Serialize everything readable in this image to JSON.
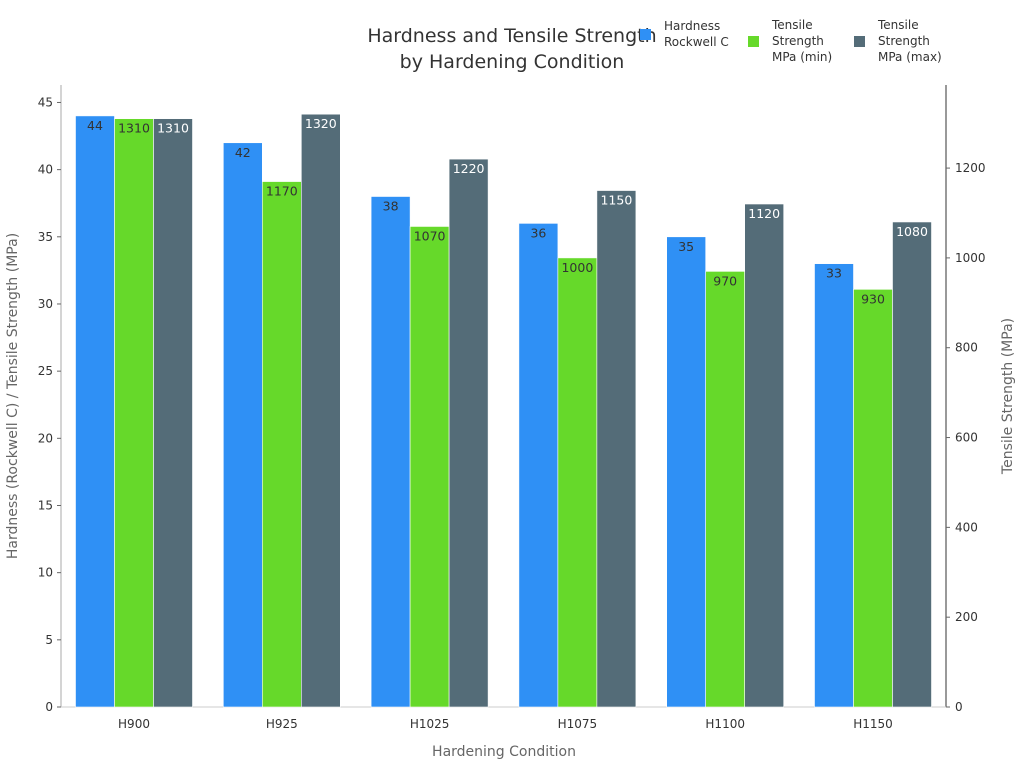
{
  "chart_data": {
    "type": "bar",
    "title": "Hardness and Tensile Strength",
    "subtitle": "by Hardening Condition",
    "xlabel": "Hardening Condition",
    "ylabel": "Hardness (Rockwell C) / Tensile Strength (MPa)",
    "y2label": "Tensile Strength (MPa)",
    "categories": [
      "H900",
      "H925",
      "H1025",
      "H1075",
      "H1100",
      "H1150"
    ],
    "ylim": [
      0,
      46.3
    ],
    "y2lim": [
      0,
      1385
    ],
    "yticks": [
      0,
      5,
      10,
      15,
      20,
      25,
      30,
      35,
      40,
      45
    ],
    "y2ticks": [
      0,
      200,
      400,
      600,
      800,
      1000,
      1200
    ],
    "grid": false,
    "legend": "top-right",
    "series": [
      {
        "name": [
          "Hardness",
          "Rockwell C"
        ],
        "axis": "left",
        "color": "#2f90f5",
        "label_color": "#333333",
        "values": [
          44,
          42,
          38,
          36,
          35,
          33
        ]
      },
      {
        "name": [
          "Tensile",
          "Strength",
          "MPa (min)"
        ],
        "axis": "right",
        "color": "#66d92a",
        "label_color": "#333333",
        "values": [
          1310,
          1170,
          1070,
          1000,
          970,
          930
        ]
      },
      {
        "name": [
          "Tensile",
          "Strength",
          "MPa (max)"
        ],
        "axis": "right",
        "color": "#546c78",
        "label_color": "#ffffff",
        "values": [
          1310,
          1320,
          1220,
          1150,
          1120,
          1080
        ]
      }
    ]
  }
}
